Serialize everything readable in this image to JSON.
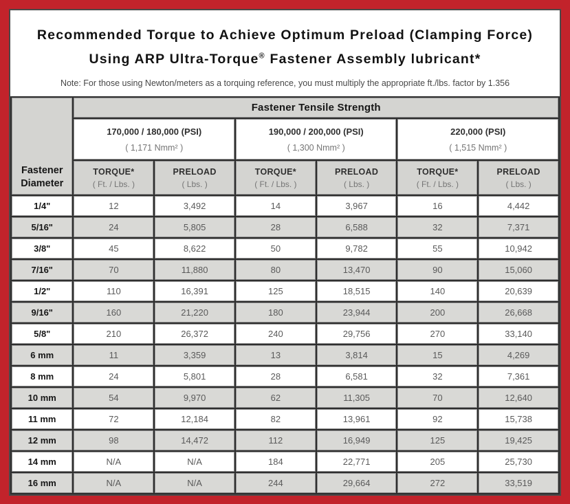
{
  "header": {
    "title_line1": "Recommended Torque to Achieve Optimum Preload (Clamping Force)",
    "title_line2_prefix": "Using ARP Ultra-Torque",
    "registered_mark": "®",
    "title_line2_suffix": " Fastener Assembly lubricant*",
    "note": "Note: For those using Newton/meters as a torquing reference, you must multiply the appropriate ft./lbs. factor by 1.356"
  },
  "table": {
    "corner_line1": "Fastener",
    "corner_line2": "Diameter",
    "group_header": "Fastener Tensile Strength",
    "strength_groups": [
      {
        "psi": "170,000 / 180,000 (PSI)",
        "nmm": "( 1,171 Nmm² )"
      },
      {
        "psi": "190,000 / 200,000 (PSI)",
        "nmm": "( 1,300 Nmm² )"
      },
      {
        "psi": "220,000 (PSI)",
        "nmm": "( 1,515 Nmm² )"
      }
    ],
    "col_headers": {
      "torque_label": "TORQUE*",
      "torque_unit": "( Ft. / Lbs. )",
      "preload_label": "PRELOAD",
      "preload_unit": "( Lbs. )"
    },
    "rows": [
      {
        "diameter": "1/4\"",
        "values": [
          "12",
          "3,492",
          "14",
          "3,967",
          "16",
          "4,442"
        ]
      },
      {
        "diameter": "5/16\"",
        "values": [
          "24",
          "5,805",
          "28",
          "6,588",
          "32",
          "7,371"
        ]
      },
      {
        "diameter": "3/8\"",
        "values": [
          "45",
          "8,622",
          "50",
          "9,782",
          "55",
          "10,942"
        ]
      },
      {
        "diameter": "7/16\"",
        "values": [
          "70",
          "11,880",
          "80",
          "13,470",
          "90",
          "15,060"
        ]
      },
      {
        "diameter": "1/2\"",
        "values": [
          "110",
          "16,391",
          "125",
          "18,515",
          "140",
          "20,639"
        ]
      },
      {
        "diameter": "9/16\"",
        "values": [
          "160",
          "21,220",
          "180",
          "23,944",
          "200",
          "26,668"
        ]
      },
      {
        "diameter": "5/8\"",
        "values": [
          "210",
          "26,372",
          "240",
          "29,756",
          "270",
          "33,140"
        ]
      },
      {
        "diameter": "6 mm",
        "values": [
          "11",
          "3,359",
          "13",
          "3,814",
          "15",
          "4,269"
        ]
      },
      {
        "diameter": "8 mm",
        "values": [
          "24",
          "5,801",
          "28",
          "6,581",
          "32",
          "7,361"
        ]
      },
      {
        "diameter": "10 mm",
        "values": [
          "54",
          "9,970",
          "62",
          "11,305",
          "70",
          "12,640"
        ]
      },
      {
        "diameter": "11 mm",
        "values": [
          "72",
          "12,184",
          "82",
          "13,961",
          "92",
          "15,738"
        ]
      },
      {
        "diameter": "12 mm",
        "values": [
          "98",
          "14,472",
          "112",
          "16,949",
          "125",
          "19,425"
        ]
      },
      {
        "diameter": "14 mm",
        "values": [
          "N/A",
          "N/A",
          "184",
          "22,771",
          "205",
          "25,730"
        ]
      },
      {
        "diameter": "16 mm",
        "values": [
          "N/A",
          "N/A",
          "244",
          "29,664",
          "272",
          "33,519"
        ]
      }
    ]
  },
  "colors": {
    "frame_red": "#c2232b",
    "panel_border": "#4a4a4a",
    "grid_line": "#2e2e2e",
    "cell_border": "#949494",
    "stripe_gray": "#d9d9d6",
    "header_gray": "#d4d4d1"
  }
}
